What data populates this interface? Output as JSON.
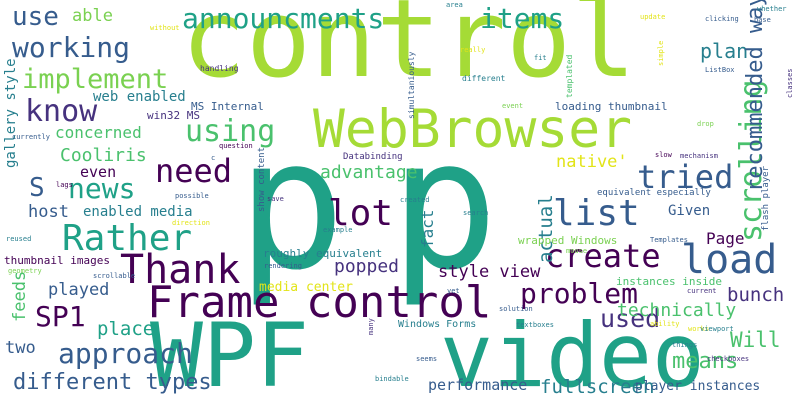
{
  "wordcloud": {
    "colors": {
      "background": "#ffffff",
      "lime": "#a5db36",
      "green": "#4ac16d",
      "teal": "#1fa187",
      "cyan": "#277f8e",
      "blue": "#365c8d",
      "indigo": "#46327e",
      "purple": "#440154",
      "yellow": "#e2e418",
      "lightgreen": "#7ad151"
    },
    "words": [
      {
        "text": "p"
      },
      {
        "text": "p"
      },
      {
        "text": "control"
      },
      {
        "text": "WPF"
      },
      {
        "text": "video"
      },
      {
        "text": "WebBrowser"
      },
      {
        "text": "Frame control"
      },
      {
        "text": "Thank"
      },
      {
        "text": "load"
      },
      {
        "text": "lot"
      },
      {
        "text": "list"
      },
      {
        "text": "create"
      },
      {
        "text": "Rather"
      },
      {
        "text": "scrolling"
      },
      {
        "text": "announcments"
      },
      {
        "text": "items"
      },
      {
        "text": "working"
      },
      {
        "text": "implement"
      },
      {
        "text": "know"
      },
      {
        "text": "using"
      },
      {
        "text": "need"
      },
      {
        "text": "tried"
      },
      {
        "text": "news"
      },
      {
        "text": "problem"
      },
      {
        "text": "approach"
      },
      {
        "text": "SP1"
      },
      {
        "text": "use"
      },
      {
        "text": "able"
      },
      {
        "text": "plan"
      },
      {
        "text": "recommended way"
      },
      {
        "text": "S"
      },
      {
        "text": "different types"
      },
      {
        "text": "used"
      },
      {
        "text": "means"
      },
      {
        "text": "fullscreen"
      },
      {
        "text": "bunch"
      },
      {
        "text": "Will"
      },
      {
        "text": "popped"
      },
      {
        "text": "Cooliris"
      },
      {
        "text": "advantage"
      },
      {
        "text": "actual"
      },
      {
        "text": "native'"
      },
      {
        "text": "Page"
      },
      {
        "text": "technically"
      },
      {
        "text": "place"
      },
      {
        "text": "played"
      },
      {
        "text": "feeds"
      },
      {
        "text": "two"
      },
      {
        "text": "gallery style"
      },
      {
        "text": "host"
      },
      {
        "text": "concerned"
      },
      {
        "text": "even"
      },
      {
        "text": "web enabled"
      },
      {
        "text": "enabled media"
      },
      {
        "text": "Given"
      },
      {
        "text": "style view"
      },
      {
        "text": "media center"
      },
      {
        "text": "fact"
      },
      {
        "text": "performance"
      },
      {
        "text": "player instances"
      },
      {
        "text": "Windows Forms"
      },
      {
        "text": "loading thumbnail"
      },
      {
        "text": "MS Internal"
      },
      {
        "text": "win32 MS"
      },
      {
        "text": "thumbnail images"
      },
      {
        "text": "wrapped Windows"
      },
      {
        "text": "roughly equivalent"
      },
      {
        "text": "instances inside"
      },
      {
        "text": "equivalent especially"
      },
      {
        "text": "Databinding"
      },
      {
        "text": "flash player"
      },
      {
        "text": "show content"
      },
      {
        "text": "simultaniously"
      },
      {
        "text": "different"
      },
      {
        "text": "templated"
      },
      {
        "text": "handling"
      },
      {
        "text": "without"
      },
      {
        "text": "area"
      },
      {
        "text": "whether"
      },
      {
        "text": "base"
      },
      {
        "text": "update"
      },
      {
        "text": "clicking"
      },
      {
        "text": "really"
      },
      {
        "text": "fit"
      },
      {
        "text": "simple"
      },
      {
        "text": "ListBox"
      },
      {
        "text": "event"
      },
      {
        "text": "drop"
      },
      {
        "text": "classes"
      },
      {
        "text": "question"
      },
      {
        "text": "slow"
      },
      {
        "text": "mechanism"
      },
      {
        "text": "current"
      },
      {
        "text": "mouse"
      },
      {
        "text": "lags"
      },
      {
        "text": "currently"
      },
      {
        "text": "save"
      },
      {
        "text": "created"
      },
      {
        "text": "search"
      },
      {
        "text": "possible"
      },
      {
        "text": "direction"
      },
      {
        "text": "example"
      },
      {
        "text": "reused"
      },
      {
        "text": "scrollable"
      },
      {
        "text": "geometry"
      },
      {
        "text": "rendering"
      },
      {
        "text": "Templates"
      },
      {
        "text": "ability"
      },
      {
        "text": "yet"
      },
      {
        "text": "solution"
      },
      {
        "text": "textboxes"
      },
      {
        "text": "many"
      },
      {
        "text": "seems"
      },
      {
        "text": "bindable"
      },
      {
        "text": "things"
      },
      {
        "text": "checkboxes"
      },
      {
        "text": "works"
      },
      {
        "text": "viewport"
      },
      {
        "text": "c"
      }
    ]
  }
}
